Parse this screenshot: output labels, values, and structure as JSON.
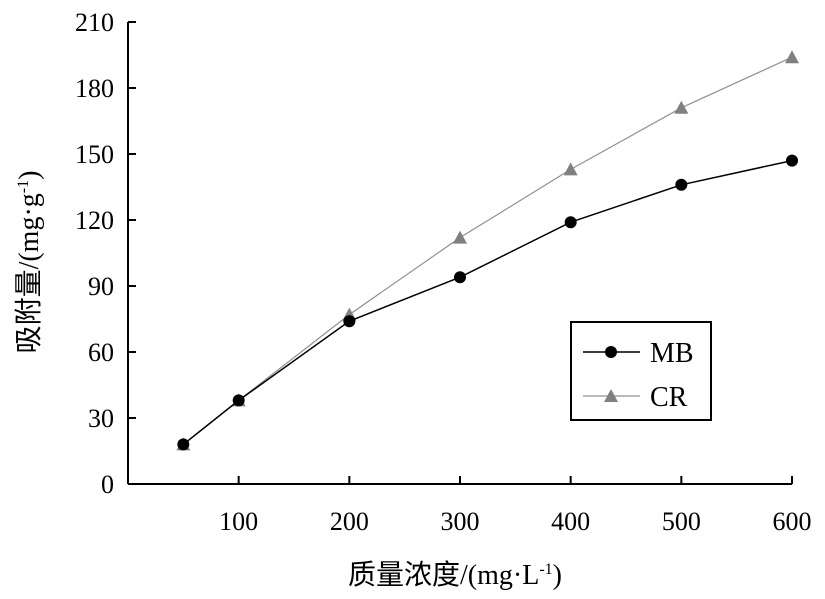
{
  "chart_data": {
    "type": "line",
    "x": [
      50,
      100,
      200,
      300,
      400,
      500,
      600
    ],
    "xlabel": "质量浓度/(mg·L",
    "xlabel_sup": "-1",
    "xlabel_close": ")",
    "ylabel": "吸附量/(mg·g",
    "ylabel_sup": "-1",
    "ylabel_close": ")",
    "xticks": [
      100,
      200,
      300,
      400,
      500,
      600
    ],
    "yticks": [
      0,
      30,
      60,
      90,
      120,
      150,
      180,
      210
    ],
    "xlim": [
      0,
      600
    ],
    "ylim": [
      0,
      210
    ],
    "grid": false,
    "legend_position": "center-right",
    "series": [
      {
        "name": "MB",
        "marker": "circle",
        "color": "#000000",
        "line_color": "#000000",
        "values": [
          18,
          38,
          74,
          94,
          119,
          136,
          147
        ]
      },
      {
        "name": "CR",
        "marker": "triangle",
        "color": "#808080",
        "line_color": "#909090",
        "values": [
          18,
          38,
          77,
          112,
          143,
          171,
          194
        ]
      }
    ]
  }
}
